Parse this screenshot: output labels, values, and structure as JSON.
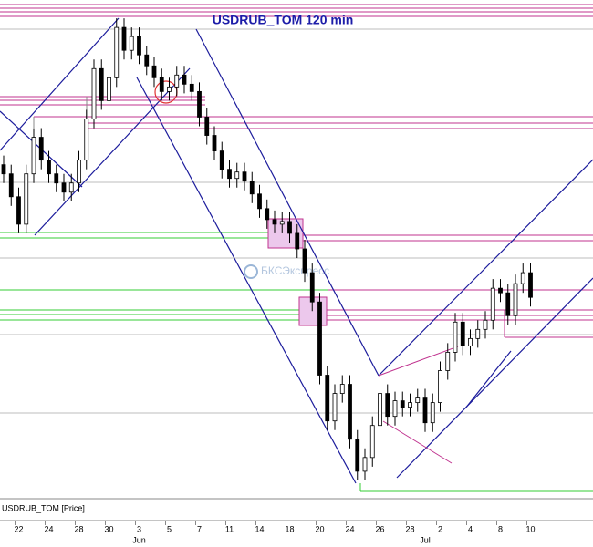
{
  "chart_data": {
    "type": "candlestick",
    "title": "USDRUB_TOM 120 min",
    "series_label": "USDRUB_TOM [Price]",
    "watermark": "БКСЭкспресс",
    "color": "#000000",
    "categories": [
      null,
      null,
      "22",
      null,
      null,
      null,
      "24",
      null,
      null,
      null,
      "28",
      null,
      null,
      null,
      "30",
      null,
      null,
      null,
      "3",
      null,
      null,
      null,
      "5",
      null,
      null,
      null,
      "7",
      null,
      null,
      null,
      "11",
      null,
      null,
      null,
      "14",
      null,
      null,
      null,
      "18",
      null,
      null,
      null,
      "20",
      null,
      null,
      null,
      "24",
      null,
      null,
      null,
      "26",
      null,
      null,
      null,
      "28",
      null,
      null,
      null,
      "2",
      null,
      null,
      null,
      "4",
      null,
      null,
      null,
      "8",
      null,
      null,
      null,
      "10"
    ],
    "months": [
      null,
      null,
      null,
      null,
      null,
      null,
      null,
      null,
      null,
      null,
      null,
      null,
      null,
      null,
      null,
      null,
      null,
      null,
      "Jun",
      null,
      null,
      null,
      null,
      null,
      null,
      null,
      null,
      null,
      null,
      null,
      null,
      null,
      null,
      null,
      null,
      null,
      null,
      null,
      null,
      null,
      null,
      null,
      null,
      null,
      null,
      null,
      null,
      null,
      null,
      null,
      null,
      null,
      null,
      null,
      null,
      null,
      "Jul",
      null,
      null,
      null,
      null,
      null,
      null,
      null,
      null,
      null,
      null,
      null,
      null,
      null,
      null
    ],
    "open": [
      64.7,
      64.6,
      64.35,
      64.05,
      64.6,
      65.0,
      64.75,
      64.6,
      64.5,
      64.4,
      64.5,
      64.75,
      65.2,
      65.75,
      65.4,
      65.65,
      66.2,
      65.95,
      66.1,
      65.9,
      65.78,
      65.65,
      65.5,
      65.55,
      65.68,
      65.58,
      65.5,
      65.22,
      65.02,
      64.85,
      64.65,
      64.55,
      64.62,
      64.52,
      64.38,
      64.22,
      64.1,
      64.05,
      64.08,
      63.95,
      63.78,
      63.52,
      63.2,
      62.4,
      61.9,
      62.2,
      62.3,
      61.7,
      61.35,
      61.5,
      61.85,
      62.2,
      61.95,
      62.12,
      62.05,
      62.1,
      62.15,
      61.88,
      62.1,
      62.45,
      62.65,
      62.98,
      62.72,
      62.8,
      62.9,
      63.0,
      63.35,
      63.3,
      63.05,
      63.4,
      63.52
    ],
    "high": [
      64.8,
      64.7,
      64.45,
      64.7,
      65.1,
      65.1,
      64.85,
      64.7,
      64.6,
      64.6,
      64.85,
      65.3,
      65.85,
      65.85,
      65.75,
      66.3,
      66.3,
      66.2,
      66.2,
      66.0,
      65.88,
      65.75,
      65.65,
      65.78,
      65.78,
      65.68,
      65.6,
      65.32,
      65.12,
      64.95,
      64.75,
      64.72,
      64.72,
      64.62,
      64.48,
      64.32,
      64.2,
      64.18,
      64.18,
      64.05,
      63.88,
      63.62,
      63.3,
      62.5,
      62.3,
      62.4,
      62.4,
      61.8,
      61.6,
      61.95,
      62.3,
      62.3,
      62.22,
      62.22,
      62.2,
      62.25,
      62.25,
      62.2,
      62.55,
      62.75,
      63.08,
      63.08,
      62.9,
      63.0,
      63.1,
      63.45,
      63.45,
      63.4,
      63.5,
      63.62,
      63.62
    ],
    "low": [
      64.5,
      64.25,
      63.95,
      63.95,
      64.5,
      64.65,
      64.5,
      64.4,
      64.3,
      64.3,
      64.4,
      64.65,
      65.1,
      65.3,
      65.3,
      65.55,
      65.85,
      65.85,
      65.8,
      65.68,
      65.55,
      65.4,
      65.4,
      65.45,
      65.48,
      65.4,
      65.12,
      64.92,
      64.75,
      64.55,
      64.45,
      64.45,
      64.42,
      64.28,
      64.12,
      64.0,
      63.95,
      63.95,
      63.85,
      63.68,
      63.42,
      63.1,
      62.3,
      61.8,
      61.8,
      62.1,
      61.6,
      61.25,
      61.25,
      61.4,
      61.75,
      61.85,
      61.85,
      61.95,
      61.95,
      62.0,
      61.78,
      61.78,
      62.0,
      62.35,
      62.55,
      62.62,
      62.62,
      62.7,
      62.8,
      62.9,
      63.2,
      62.95,
      62.95,
      63.3,
      63.15
    ],
    "close": [
      64.6,
      64.35,
      64.05,
      64.6,
      65.0,
      64.75,
      64.6,
      64.5,
      64.4,
      64.5,
      64.75,
      65.2,
      65.75,
      65.4,
      65.65,
      66.2,
      65.95,
      66.1,
      65.9,
      65.78,
      65.65,
      65.5,
      65.55,
      65.68,
      65.58,
      65.5,
      65.22,
      65.02,
      64.85,
      64.65,
      64.55,
      64.62,
      64.52,
      64.38,
      64.22,
      64.1,
      64.05,
      64.08,
      63.95,
      63.78,
      63.52,
      63.2,
      62.4,
      61.9,
      62.2,
      62.3,
      61.7,
      61.35,
      61.5,
      61.85,
      62.2,
      61.95,
      62.12,
      62.05,
      62.1,
      62.15,
      61.88,
      62.1,
      62.45,
      62.65,
      62.98,
      62.72,
      62.8,
      62.9,
      63.0,
      63.35,
      63.3,
      63.05,
      63.4,
      63.52,
      63.25
    ],
    "ylim": [
      61.05,
      66.5
    ]
  }
}
